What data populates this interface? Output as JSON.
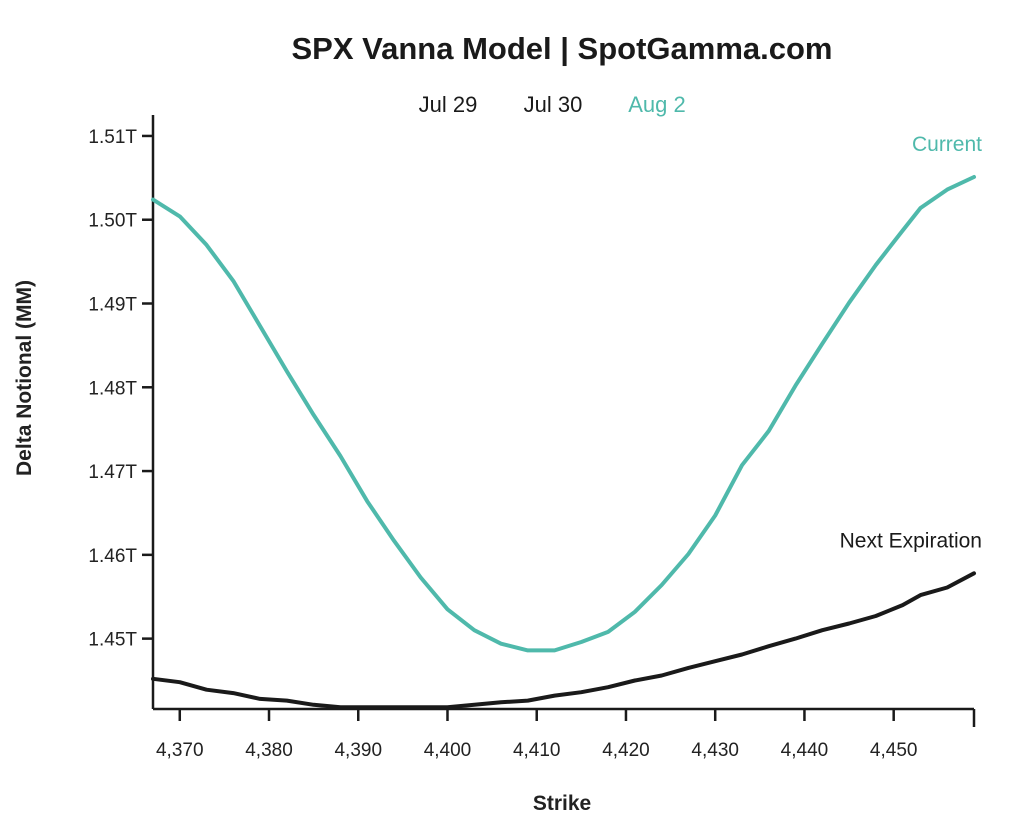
{
  "chart_data": {
    "type": "line",
    "title": "SPX Vanna Model | SpotGamma.com",
    "xlabel": "Strike",
    "ylabel": "Delta Notional (MM)",
    "xlim": [
      4367,
      4459
    ],
    "ylim": [
      1.4416,
      1.5125
    ],
    "x_ticks": [
      4370,
      4380,
      4390,
      4400,
      4410,
      4420,
      4430,
      4440,
      4450
    ],
    "x_tick_labels": [
      "4,370",
      "4,380",
      "4,390",
      "4,400",
      "4,410",
      "4,420",
      "4,430",
      "4,440",
      "4,450"
    ],
    "y_ticks": [
      1.45,
      1.46,
      1.47,
      1.48,
      1.49,
      1.5,
      1.51
    ],
    "y_tick_labels": [
      "1.45T",
      "1.46T",
      "1.47T",
      "1.48T",
      "1.49T",
      "1.50T",
      "1.51T"
    ],
    "legend": {
      "placement": "top",
      "items": [
        {
          "label": "Jul 29",
          "color": "#1a1a1a"
        },
        {
          "label": "Jul 30",
          "color": "#1a1a1a"
        },
        {
          "label": "Aug 2",
          "color": "#4fb9ab"
        }
      ]
    },
    "grid": false,
    "series": [
      {
        "name": "Current",
        "color": "#4fb9ab",
        "x": [
          4367,
          4370,
          4373,
          4376,
          4379,
          4382,
          4385,
          4388,
          4391,
          4394,
          4397,
          4400,
          4403,
          4406,
          4409,
          4412,
          4415,
          4418,
          4421,
          4424,
          4427,
          4430,
          4433,
          4436,
          4439,
          4442,
          4445,
          4448,
          4451,
          4453,
          4456,
          4459
        ],
        "values": [
          1.5024,
          1.5004,
          1.497,
          1.4927,
          1.4873,
          1.4819,
          1.4767,
          1.4718,
          1.4664,
          1.4617,
          1.4573,
          1.4535,
          1.451,
          1.4494,
          1.4486,
          1.4486,
          1.4496,
          1.4508,
          1.4532,
          1.4564,
          1.4601,
          1.4647,
          1.4707,
          1.4748,
          1.4802,
          1.4852,
          1.4901,
          1.4946,
          1.4987,
          1.5014,
          1.5036,
          1.5051
        ]
      },
      {
        "name": "Next Expiration",
        "color": "#1a1a1a",
        "x": [
          4367,
          4370,
          4373,
          4376,
          4379,
          4382,
          4385,
          4388,
          4391,
          4394,
          4397,
          4400,
          4403,
          4406,
          4409,
          4412,
          4415,
          4418,
          4421,
          4424,
          4427,
          4430,
          4433,
          4436,
          4439,
          4442,
          4445,
          4448,
          4451,
          4453,
          4456,
          4459
        ],
        "values": [
          1.4452,
          1.4448,
          1.4439,
          1.4435,
          1.4428,
          1.4426,
          1.4421,
          1.4418,
          1.4418,
          1.4418,
          1.4418,
          1.4418,
          1.4421,
          1.4424,
          1.4426,
          1.4432,
          1.4436,
          1.4442,
          1.445,
          1.4456,
          1.4465,
          1.4473,
          1.4481,
          1.4491,
          1.45,
          1.451,
          1.4518,
          1.4527,
          1.454,
          1.4552,
          1.4561,
          1.4578
        ]
      }
    ]
  }
}
